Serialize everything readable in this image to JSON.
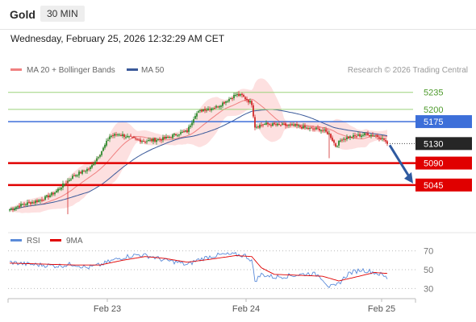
{
  "header": {
    "instrument": "Gold",
    "timeframe": "30 MIN",
    "datetime": "Wednesday, February 25, 2026 12:32:29 AM CET"
  },
  "legend": {
    "ma20": "MA 20 + Bollinger Bands",
    "ma50": "MA 50",
    "credit": "Research © 2026 Trading Central",
    "rsi": "RSI",
    "rsi_ma": "9MA"
  },
  "colors": {
    "ma20": "#f08080",
    "ma50": "#3b5a9a",
    "green_level": "#9bd27a",
    "blue_level": "#3d6fd9",
    "red_level": "#e00000",
    "candle_up": "#2e8b2e",
    "candle_down": "#d12a2a",
    "arrow": "#2f5aa0",
    "rsi_line": "#5b8bd9",
    "rsi_ma_line": "#e00000",
    "band_fill": "#fde0e0"
  },
  "chart_data": [
    {
      "type": "candlestick",
      "price_range": [
        4982,
        5256
      ],
      "x_ticks": [
        "Feb 23",
        "Feb 24",
        "Feb 25"
      ],
      "levels": [
        {
          "label": "5235",
          "value": 5235,
          "style": "green"
        },
        {
          "label": "5200",
          "value": 5200,
          "style": "green"
        },
        {
          "label": "5175",
          "value": 5175,
          "style": "blue"
        },
        {
          "label": "5130",
          "value": 5130,
          "style": "current"
        },
        {
          "label": "5090",
          "value": 5090,
          "style": "red"
        },
        {
          "label": "5045",
          "value": 5045,
          "style": "red"
        }
      ],
      "close_anchors": [
        [
          0,
          4995
        ],
        [
          8,
          5005
        ],
        [
          20,
          5015
        ],
        [
          28,
          5030
        ],
        [
          40,
          5065
        ],
        [
          50,
          5080
        ],
        [
          58,
          5120
        ],
        [
          62,
          5145
        ],
        [
          68,
          5150
        ],
        [
          76,
          5140
        ],
        [
          84,
          5135
        ],
        [
          96,
          5140
        ],
        [
          104,
          5150
        ],
        [
          110,
          5155
        ],
        [
          115,
          5190
        ],
        [
          120,
          5200
        ],
        [
          128,
          5205
        ],
        [
          133,
          5215
        ],
        [
          140,
          5230
        ],
        [
          144,
          5228
        ],
        [
          150,
          5212
        ],
        [
          152,
          5165
        ],
        [
          158,
          5170
        ],
        [
          166,
          5168
        ],
        [
          178,
          5166
        ],
        [
          186,
          5160
        ],
        [
          192,
          5160
        ],
        [
          198,
          5150
        ],
        [
          202,
          5125
        ],
        [
          206,
          5140
        ],
        [
          214,
          5145
        ],
        [
          222,
          5150
        ],
        [
          228,
          5145
        ],
        [
          232,
          5138
        ],
        [
          234,
          5130
        ]
      ],
      "projection": {
        "from": 5130,
        "to": 5045
      }
    },
    {
      "type": "line",
      "title": "RSI",
      "y_ticks": [
        70,
        50,
        30
      ],
      "ylim": [
        20,
        80
      ],
      "rsi_anchors": [
        [
          0,
          58
        ],
        [
          10,
          56
        ],
        [
          20,
          55
        ],
        [
          30,
          54
        ],
        [
          40,
          56
        ],
        [
          48,
          52
        ],
        [
          56,
          55
        ],
        [
          64,
          60
        ],
        [
          72,
          64
        ],
        [
          80,
          66
        ],
        [
          88,
          64
        ],
        [
          96,
          60
        ],
        [
          104,
          58
        ],
        [
          110,
          55
        ],
        [
          116,
          60
        ],
        [
          124,
          64
        ],
        [
          132,
          66
        ],
        [
          140,
          66
        ],
        [
          146,
          65
        ],
        [
          150,
          60
        ],
        [
          152,
          38
        ],
        [
          156,
          45
        ],
        [
          164,
          42
        ],
        [
          176,
          44
        ],
        [
          186,
          46
        ],
        [
          192,
          44
        ],
        [
          198,
          32
        ],
        [
          202,
          32
        ],
        [
          210,
          46
        ],
        [
          218,
          50
        ],
        [
          224,
          48
        ],
        [
          230,
          45
        ],
        [
          234,
          41
        ]
      ],
      "ma_anchors": [
        [
          0,
          57
        ],
        [
          20,
          56
        ],
        [
          40,
          55
        ],
        [
          56,
          55
        ],
        [
          70,
          60
        ],
        [
          84,
          64
        ],
        [
          96,
          62
        ],
        [
          110,
          58
        ],
        [
          124,
          61
        ],
        [
          140,
          65
        ],
        [
          150,
          64
        ],
        [
          156,
          52
        ],
        [
          164,
          45
        ],
        [
          180,
          44
        ],
        [
          194,
          43
        ],
        [
          204,
          38
        ],
        [
          214,
          42
        ],
        [
          226,
          47
        ],
        [
          234,
          46
        ]
      ]
    }
  ]
}
